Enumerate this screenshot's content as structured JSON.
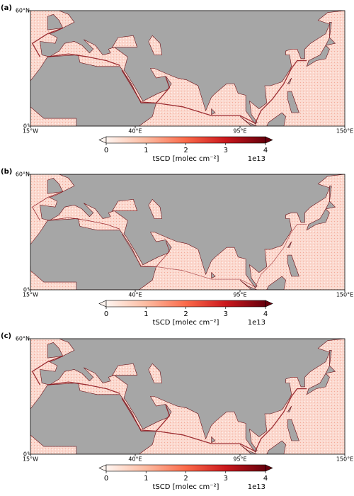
{
  "panels": [
    {
      "label": "(a)"
    },
    {
      "label": "(b)"
    },
    {
      "label": "(c)"
    }
  ],
  "map": {
    "lon_lim": [
      -15,
      150
    ],
    "lat_lim": [
      0,
      60
    ],
    "lat_ticks": [
      {
        "value": 60,
        "label": "60°N"
      },
      {
        "value": 0,
        "label": "0°"
      }
    ],
    "lon_ticks": [
      {
        "value": -15,
        "label": "15°W"
      },
      {
        "value": 40,
        "label": "40°E"
      },
      {
        "value": 95,
        "label": "95°E"
      },
      {
        "value": 150,
        "label": "150°E"
      }
    ]
  },
  "colorbar": {
    "label": "tSCD [molec cm⁻²]",
    "scale_label": "1e13",
    "lim": [
      0,
      4
    ],
    "ticks": [
      0,
      1,
      2,
      3,
      4
    ],
    "extend": "both",
    "colors": [
      "#fff5f0",
      "#fcbba1",
      "#fb6a4a",
      "#cb181d",
      "#67000d"
    ]
  }
}
